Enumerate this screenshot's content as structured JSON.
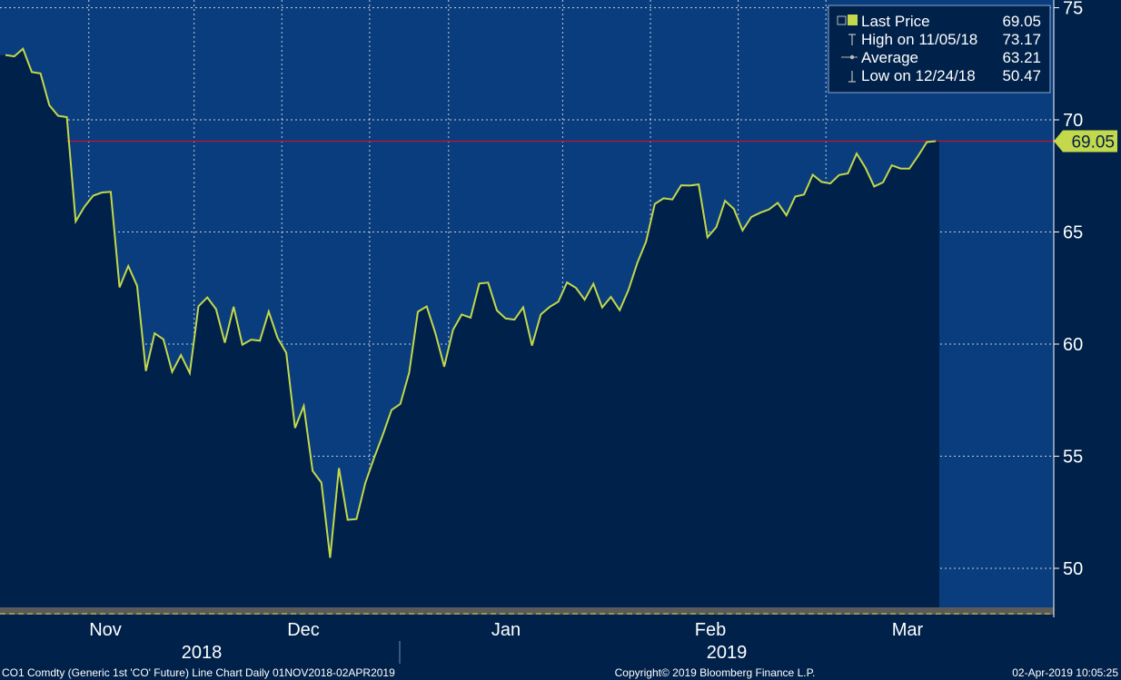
{
  "chart_data": {
    "type": "line",
    "ticker_description": "CO1 Comdty (Generic 1st 'CO' Future) Line Chart  Daily 01NOV2018-02APR2019",
    "copyright": "Copyright© 2019 Bloomberg Finance L.P.",
    "timestamp": "02-Apr-2019 10:05:25",
    "y_axis": {
      "side": "right",
      "ylim": [
        48,
        75.8
      ],
      "ticks": [
        50,
        55,
        60,
        65,
        70,
        75
      ]
    },
    "x_axis": {
      "months": [
        "Nov",
        "Dec",
        "Jan",
        "Feb",
        "Mar"
      ],
      "years": [
        "2018",
        "2019"
      ]
    },
    "grid": true,
    "legend": {
      "placement": "top-right",
      "items": [
        {
          "label": "Last Price",
          "value": "69.05",
          "marker": "square"
        },
        {
          "label": "High on 11/05/18",
          "value": "73.17",
          "marker": "tee"
        },
        {
          "label": "Average",
          "value": "63.21",
          "marker": "dot"
        },
        {
          "label": "Low on 12/24/18",
          "value": "50.47",
          "marker": "inverted-tee"
        }
      ]
    },
    "last_price_label": "69.05",
    "last_price": 69.05,
    "series": [
      {
        "name": "Last Price",
        "color": "#c3d84b",
        "x": [
          "2018-11-01",
          "2018-11-02",
          "2018-11-05",
          "2018-11-06",
          "2018-11-07",
          "2018-11-08",
          "2018-11-09",
          "2018-11-12",
          "2018-11-13",
          "2018-11-14",
          "2018-11-15",
          "2018-11-16",
          "2018-11-19",
          "2018-11-20",
          "2018-11-21",
          "2018-11-22",
          "2018-11-23",
          "2018-11-26",
          "2018-11-27",
          "2018-11-28",
          "2018-11-29",
          "2018-11-30",
          "2018-12-03",
          "2018-12-04",
          "2018-12-05",
          "2018-12-06",
          "2018-12-07",
          "2018-12-10",
          "2018-12-11",
          "2018-12-12",
          "2018-12-13",
          "2018-12-14",
          "2018-12-17",
          "2018-12-18",
          "2018-12-19",
          "2018-12-20",
          "2018-12-21",
          "2018-12-24",
          "2018-12-26",
          "2018-12-27",
          "2018-12-28",
          "2018-12-31",
          "2019-01-02",
          "2019-01-03",
          "2019-01-04",
          "2019-01-07",
          "2019-01-08",
          "2019-01-09",
          "2019-01-10",
          "2019-01-11",
          "2019-01-14",
          "2019-01-15",
          "2019-01-16",
          "2019-01-17",
          "2019-01-18",
          "2019-01-21",
          "2019-01-22",
          "2019-01-23",
          "2019-01-24",
          "2019-01-25",
          "2019-01-28",
          "2019-01-29",
          "2019-01-30",
          "2019-01-31",
          "2019-02-01",
          "2019-02-04",
          "2019-02-05",
          "2019-02-06",
          "2019-02-07",
          "2019-02-08",
          "2019-02-11",
          "2019-02-12",
          "2019-02-13",
          "2019-02-14",
          "2019-02-15",
          "2019-02-18",
          "2019-02-19",
          "2019-02-20",
          "2019-02-21",
          "2019-02-22",
          "2019-02-25",
          "2019-02-26",
          "2019-02-27",
          "2019-02-28",
          "2019-03-01",
          "2019-03-04",
          "2019-03-05",
          "2019-03-06",
          "2019-03-07",
          "2019-03-08",
          "2019-03-11",
          "2019-03-12",
          "2019-03-13",
          "2019-03-14",
          "2019-03-15",
          "2019-03-18",
          "2019-03-19",
          "2019-03-20",
          "2019-03-21",
          "2019-03-22",
          "2019-03-25",
          "2019-03-26",
          "2019-03-27",
          "2019-03-28",
          "2019-03-29",
          "2019-04-01",
          "2019-04-02"
        ],
        "values": [
          72.89,
          72.83,
          73.17,
          72.13,
          72.07,
          70.65,
          70.18,
          70.12,
          65.47,
          66.12,
          66.62,
          66.76,
          66.79,
          62.53,
          63.48,
          62.6,
          58.8,
          60.48,
          60.21,
          58.76,
          59.51,
          58.71,
          61.69,
          62.08,
          61.56,
          60.06,
          61.67,
          59.97,
          60.2,
          60.15,
          61.45,
          60.28,
          59.61,
          56.26,
          57.24,
          54.35,
          53.82,
          50.47,
          54.47,
          52.16,
          52.2,
          53.8,
          54.91,
          55.95,
          57.06,
          57.33,
          58.72,
          61.44,
          61.68,
          60.48,
          58.99,
          60.64,
          61.32,
          61.18,
          62.7,
          62.74,
          61.5,
          61.14,
          61.09,
          61.64,
          59.93,
          61.32,
          61.65,
          61.89,
          62.75,
          62.51,
          61.98,
          62.69,
          61.63,
          62.1,
          61.51,
          62.42,
          63.61,
          64.57,
          66.25,
          66.5,
          66.45,
          67.08,
          67.07,
          67.12,
          64.76,
          65.21,
          66.39,
          66.03,
          65.07,
          65.67,
          65.86,
          66.0,
          66.3,
          65.74,
          66.58,
          66.67,
          67.55,
          67.23,
          67.16,
          67.54,
          67.61,
          68.5,
          67.86,
          67.03,
          67.21,
          67.97,
          67.83,
          67.82,
          68.39,
          69.01,
          69.05
        ]
      }
    ],
    "reference_line": {
      "value": 69.05,
      "color": "#c8102e"
    }
  }
}
